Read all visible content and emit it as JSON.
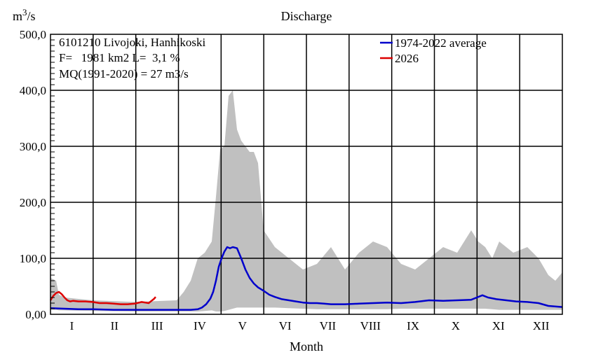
{
  "chart_data": {
    "type": "area",
    "title": "Discharge",
    "ylabel_base": "m",
    "ylabel_sup": "3",
    "ylabel_rest": "/s",
    "xlabel": "Month",
    "ylim": [
      0,
      500
    ],
    "yticks": [
      {
        "value": 0,
        "label": "0,00"
      },
      {
        "value": 100,
        "label": "100,0"
      },
      {
        "value": 200,
        "label": "200,0"
      },
      {
        "value": 300,
        "label": "300,0"
      },
      {
        "value": 400,
        "label": "400,0"
      },
      {
        "value": 500,
        "label": "500,0"
      }
    ],
    "months": [
      "I",
      "II",
      "III",
      "IV",
      "V",
      "VI",
      "VII",
      "VIII",
      "IX",
      "X",
      "XI",
      "XII"
    ],
    "x_unit": "day of year",
    "xlim": [
      0,
      365
    ],
    "grid": true,
    "info_lines": [
      "6101210 Livojoki, Hanhikoski",
      "F=   1981 km2 L=  3,1 %",
      "MQ(1991-2020) = 27 m3/s"
    ],
    "range_band": {
      "color": "#c0c0c0",
      "x": [
        0,
        4,
        6,
        10,
        30,
        60,
        90,
        95,
        100,
        105,
        110,
        115,
        118,
        121,
        124,
        127,
        130,
        133,
        136,
        139,
        142,
        145,
        148,
        152,
        160,
        170,
        180,
        190,
        200,
        210,
        220,
        230,
        240,
        250,
        260,
        270,
        280,
        290,
        300,
        305,
        310,
        315,
        320,
        330,
        340,
        348,
        355,
        360,
        365
      ],
      "min": [
        8,
        8,
        7,
        7,
        6,
        5,
        5,
        5,
        5,
        5,
        6,
        7,
        5,
        5,
        6,
        8,
        10,
        12,
        12,
        12,
        12,
        12,
        12,
        12,
        12,
        11,
        10,
        9,
        9,
        9,
        9,
        9,
        9,
        10,
        10,
        10,
        10,
        10,
        10,
        10,
        10,
        9,
        8,
        8,
        8,
        8,
        8,
        8,
        8
      ],
      "max": [
        65,
        60,
        35,
        30,
        25,
        22,
        25,
        40,
        60,
        100,
        110,
        130,
        210,
        295,
        300,
        390,
        400,
        330,
        310,
        300,
        290,
        290,
        270,
        150,
        120,
        100,
        80,
        90,
        120,
        80,
        110,
        130,
        120,
        90,
        80,
        100,
        120,
        110,
        150,
        130,
        120,
        100,
        130,
        110,
        120,
        100,
        70,
        60,
        75
      ]
    },
    "series": [
      {
        "name": "1974-2022 average",
        "color": "#0000cc",
        "x": [
          0,
          10,
          20,
          30,
          45,
          60,
          75,
          90,
          100,
          105,
          108,
          111,
          114,
          116,
          118,
          120,
          122,
          124,
          126,
          128,
          130,
          133,
          136,
          139,
          142,
          145,
          148,
          152,
          156,
          160,
          165,
          170,
          175,
          180,
          185,
          190,
          195,
          200,
          210,
          220,
          230,
          240,
          250,
          260,
          270,
          280,
          290,
          300,
          304,
          308,
          312,
          318,
          325,
          332,
          340,
          348,
          355,
          365
        ],
        "y": [
          11,
          10,
          9,
          9,
          8,
          8,
          8,
          8,
          8,
          9,
          12,
          18,
          28,
          40,
          60,
          85,
          100,
          112,
          120,
          118,
          120,
          118,
          100,
          80,
          65,
          55,
          48,
          42,
          35,
          31,
          27,
          25,
          23,
          21,
          20,
          20,
          19,
          18,
          18,
          19,
          20,
          21,
          20,
          22,
          25,
          24,
          25,
          26,
          30,
          34,
          30,
          27,
          25,
          23,
          22,
          20,
          15,
          13
        ]
      },
      {
        "name": "2026",
        "color": "#dd0000",
        "x": [
          0,
          2,
          4,
          6,
          8,
          10,
          12,
          14,
          16,
          20,
          25,
          30,
          35,
          40,
          45,
          50,
          55,
          60,
          65,
          70,
          72,
          74,
          75
        ],
        "y": [
          25,
          33,
          38,
          40,
          36,
          30,
          25,
          23,
          24,
          23,
          23,
          22,
          20,
          20,
          19,
          18,
          18,
          19,
          22,
          20,
          24,
          28,
          31
        ]
      }
    ]
  }
}
